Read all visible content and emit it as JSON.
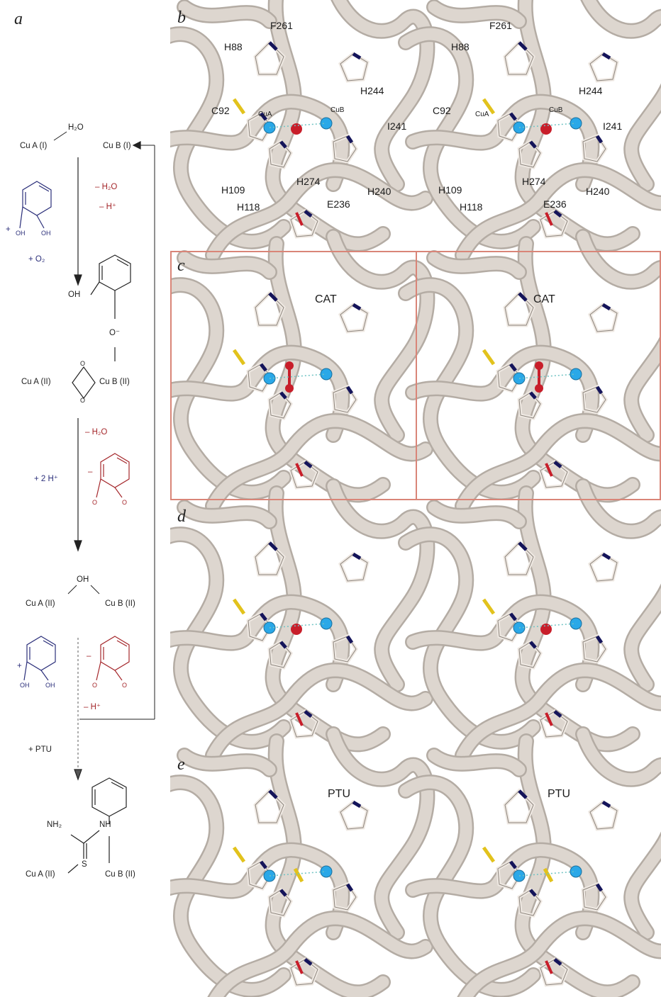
{
  "panel_letters": [
    "a",
    "b",
    "c",
    "d",
    "e"
  ],
  "scheme": {
    "cuA_I": "Cu A (I)",
    "cuB_I": "Cu B (I)",
    "h2o_top": "H₂O",
    "minus_h2o_1": "– H₂O",
    "minus_hplus_1": "– H⁺",
    "plus_1": "+",
    "oh_a": "OH",
    "oh_b": "OH",
    "plus_o2": "+ O₂",
    "oh_intermediate": "OH",
    "o_minus": "O⁻",
    "o_bridge_1": "O",
    "o_bridge_2": "O",
    "cuA_II_1": "Cu A (II)",
    "cuB_II_1": "Cu B (II)",
    "minus_h2o_2": "– H₂O",
    "plus_2hplus": "+ 2 H⁺",
    "minus_2": "–",
    "o_q1": "O",
    "o_q2": "O",
    "oh_bridge": "OH",
    "cuA_II_2": "Cu A (II)",
    "cuB_II_2": "Cu B (II)",
    "plus_3": "+",
    "oh_c": "OH",
    "oh_d": "OH",
    "minus_3": "–",
    "o_q3": "O",
    "o_q4": "O",
    "minus_hplus_2": "– H⁺",
    "plus_ptu": "+ PTU",
    "nh2": "NH₂",
    "nh": "NH",
    "s": "S",
    "cuA_II_3": "Cu A (II)",
    "cuB_II_3": "Cu B (II)"
  },
  "residues_left": [
    "F261",
    "H88",
    "H244",
    "C92",
    "I241",
    "H274",
    "H109",
    "H240",
    "H118",
    "E236"
  ],
  "residues_right": [
    "F261",
    "H88",
    "H244",
    "C92",
    "I241",
    "H274",
    "H109",
    "H240",
    "H118",
    "E236"
  ],
  "cu_labels": [
    "CuA",
    "CuB"
  ],
  "ligand_labels": {
    "c": "CAT",
    "e": "PTU"
  },
  "colors": {
    "ribbon": "#ddd6cf",
    "ribbon_edge": "#b4aca4",
    "nitrogen": "#14145a",
    "sulfur": "#e2c21c",
    "oxygen": "#c81e2a",
    "copper": "#2aa8e8",
    "frame": "#d98578",
    "scheme_blue": "#2b2f7a",
    "scheme_red": "#a5282c"
  }
}
